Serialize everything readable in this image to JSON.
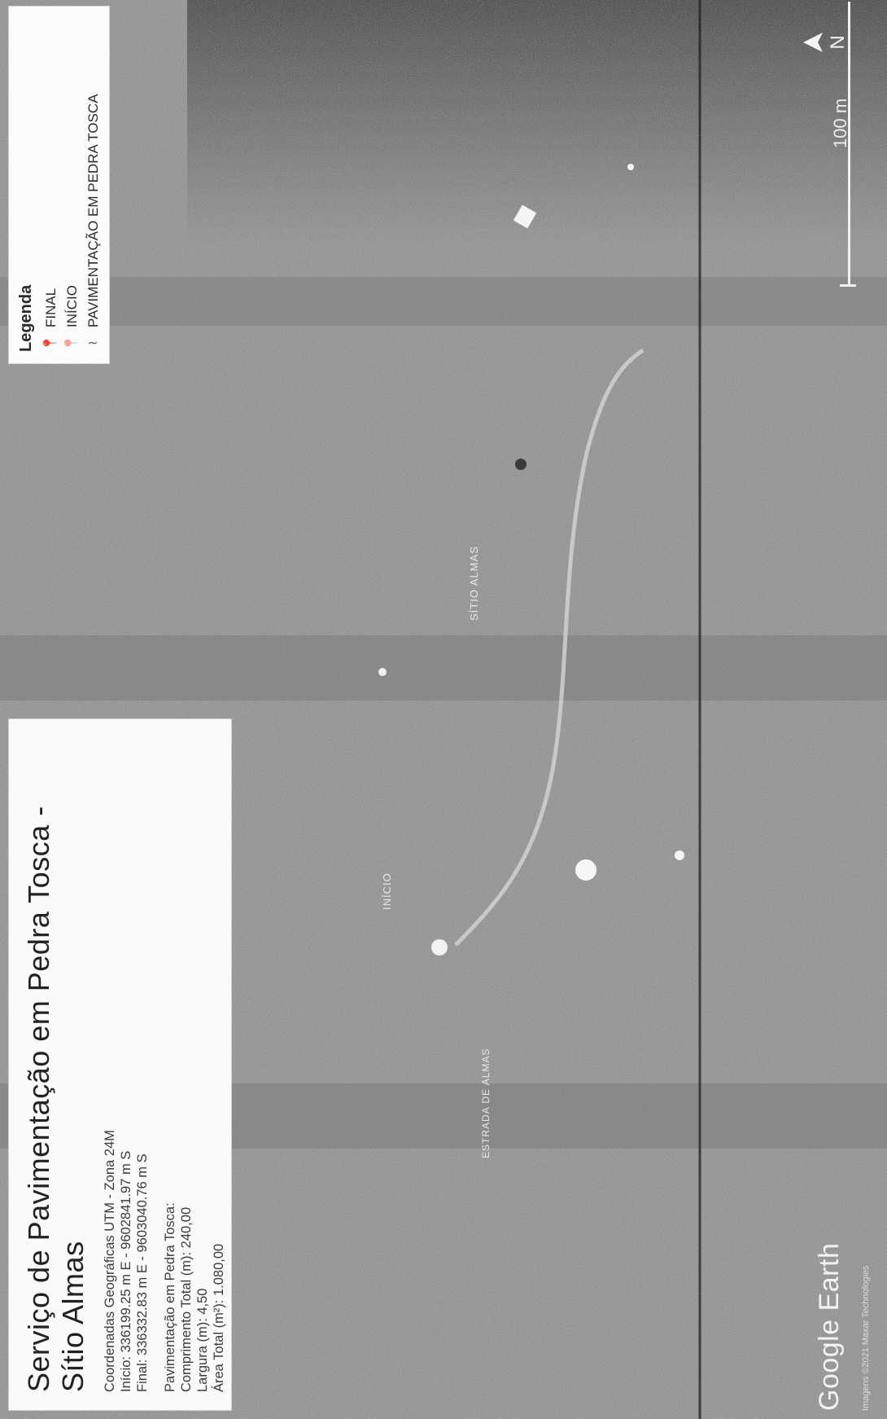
{
  "info": {
    "title": "Serviço de Pavimentação em Pedra Tosca - Sítio Almas",
    "coord_header": "Coordenadas Geográficas UTM - Zona 24M",
    "start": "Início: 336199.25 m E - 9602841.97 m S",
    "end": "Final: 336332.83 m E - 9603040.76 m S",
    "pav_header": "Pavimentação em Pedra Tosca:",
    "length": "Comprimento Total (m): 240,00",
    "width": "Largura (m): 4,50",
    "area": "Área Total (m²): 1.080,00"
  },
  "legend": {
    "title": "Legenda",
    "items": [
      {
        "label": "FINAL",
        "icon": "pin-icon"
      },
      {
        "label": "INÍCIO",
        "icon": "pin-icon"
      },
      {
        "label": "PAVIMENTAÇÃO EM PEDRA TOSCA",
        "icon": "route-icon"
      }
    ]
  },
  "map": {
    "place_label": "SÍTIO ALMAS",
    "start_label": "INÍCIO",
    "road_label": "ESTRADA DE ALMAS"
  },
  "footer": {
    "logo": "Google Earth",
    "credit": "Imagens ©2021 Maxar Technologies",
    "scale": "100 m",
    "north": "N"
  }
}
